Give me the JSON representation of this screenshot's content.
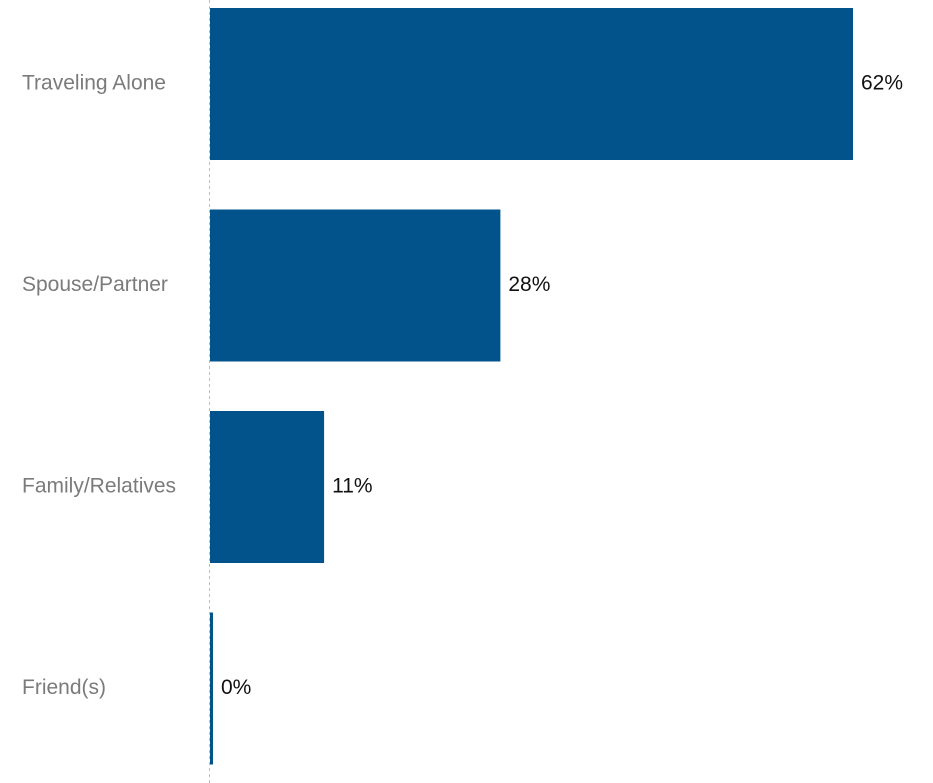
{
  "chart_data": {
    "type": "bar",
    "orientation": "horizontal",
    "categories": [
      "Traveling Alone",
      "Spouse/Partner",
      "Family/Relatives",
      "Friend(s)"
    ],
    "values": [
      62,
      28,
      11,
      0
    ],
    "value_labels": [
      "62%",
      "28%",
      "11%",
      "0%"
    ],
    "unit": "%",
    "title": "",
    "xlabel": "",
    "ylabel": "",
    "xlim": [
      0,
      62
    ],
    "grid": false,
    "legend": "none",
    "bar_color": "#02538b",
    "axis_color": "#bdbdbd"
  }
}
